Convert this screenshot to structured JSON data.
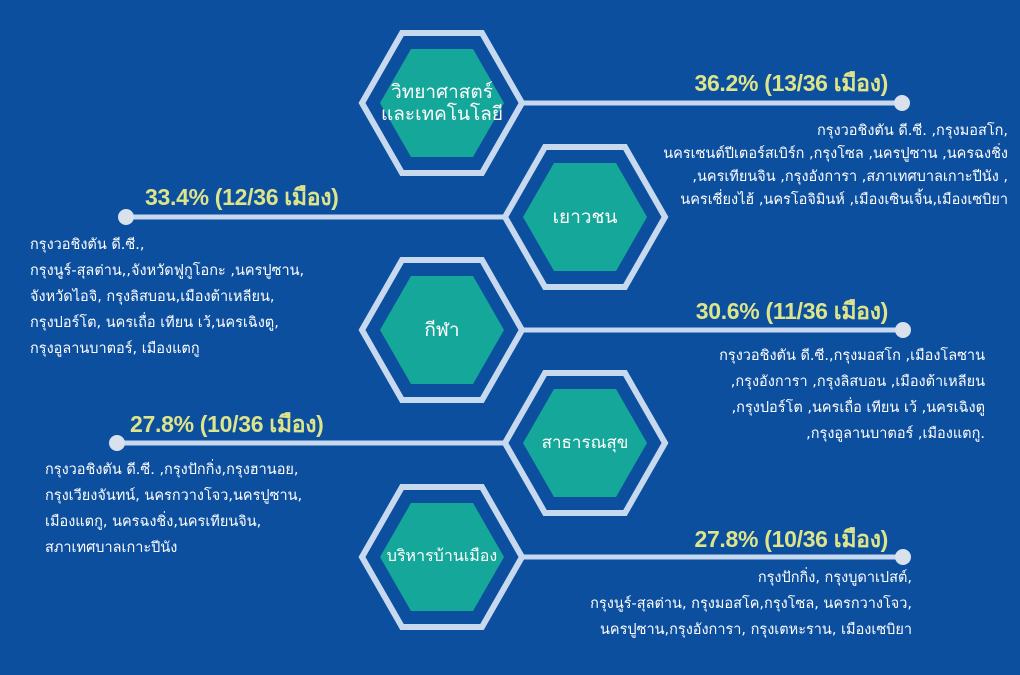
{
  "colors": {
    "background": "#0d4f9f",
    "outline": "#c7d9ef",
    "hex_fill": "#15a89a",
    "percent": "#dde58a",
    "text": "#ffffff"
  },
  "items": [
    {
      "category": [
        "วิทยาศาสตร์",
        "และเทคโนโลยี"
      ],
      "percent": "36.2% (13/36 เมือง)",
      "share": 0.362,
      "cities": [
        "กรุงวอชิงตัน ดี.ซี. ,กรุงมอสโก,",
        "นครเซนต์ปีเตอร์สเบิร์ก ,กรุงโซล ,นครปูซาน ,นครฉงชิ่ง",
        ",นครเทียนจิน ,กรุงอังการา ,สภาเทศบาลเกาะปีนัง ,",
        "นครเซี่ยงไฮ้ ,นครโอจิมินห์ ,เมืองเซินเจิ้น,เมืองเซบิยา"
      ]
    },
    {
      "category": [
        "เยาวชน"
      ],
      "percent": "33.4% (12/36 เมือง)",
      "share": 0.334,
      "cities": [
        "กรุงวอชิงตัน ดี.ซี.,",
        "กรุงนูร์-สุลต่าน,,จังหวัดฟูกูโอกะ ,นครปูซาน,",
        "จังหวัดไอจิ, กรุงลิสบอน,เมืองต้าเหลียน,",
        "กรุงปอร์โต, นครเถื่อ เทียน เว้,นครเฉิงตู,",
        "กรุงอูลานบาตอร์, เมืองแตกู"
      ]
    },
    {
      "category": [
        "กีฬา"
      ],
      "percent": "30.6% (11/36 เมือง)",
      "share": 0.306,
      "cities": [
        "กรุงวอชิงตัน ดี.ซี.,กรุงมอสโก ,เมืองโลซาน",
        ",กรุงอังการา ,กรุงลิสบอน ,เมืองต้าเหลียน",
        ",กรุงปอร์โต ,นครเถื่อ เทียน เว้ ,นครเฉิงตู",
        ",กรุงอูลานบาตอร์ ,เมืองแตกู."
      ]
    },
    {
      "category": [
        "สาธารณสุข"
      ],
      "percent": "27.8% (10/36 เมือง)",
      "share": 0.278,
      "cities": [
        "กรุงวอชิงตัน ดี.ซี. ,กรุงปักกิ่ง,กรุงฮานอย,",
        "กรุงเวียงจันทน์, นครกวางโจว,นครปูซาน,",
        "เมืองแตกู, นครฉงชิ่ง,นครเทียนจิน,",
        "สภาเทศบาลเกาะปีนัง"
      ]
    },
    {
      "category": [
        "บริหารบ้านเมือง"
      ],
      "percent": "27.8% (10/36 เมือง)",
      "share": 0.278,
      "cities": [
        "กรุงปักกิ่ง, กรุงบูดาเปสต์,",
        "กรุงนูร์-สุลต่าน, กรุงมอสโค,กรุงโซล, นครกวางโจว,",
        "นครปูซาน,กรุงอังการา, กรุงเตหะราน, เมืองเซบิยา"
      ]
    }
  ]
}
